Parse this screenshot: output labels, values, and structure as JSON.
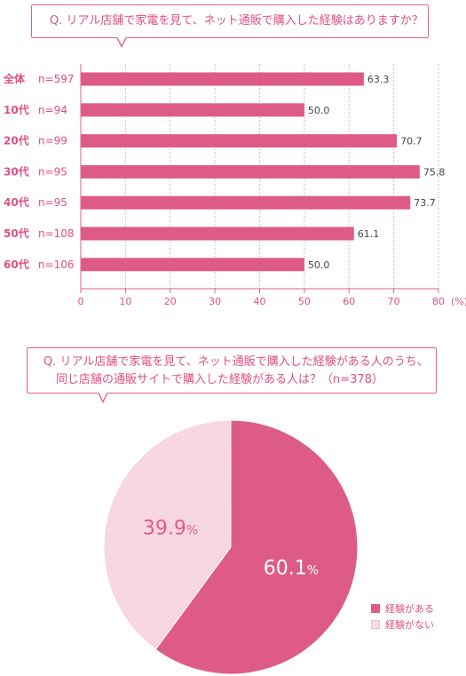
{
  "q1": {
    "text": "Q. リアル店舗で家電を見て、ネット通販で購入した経験はありますか？"
  },
  "q2": {
    "line1": "Q. リアル店舗で家電を見て、ネット通販で購入した経験がある人のうち、",
    "line2": "同じ店舗の通販サイトで購入した経験がある人は？（n=378）"
  },
  "chart_data": [
    {
      "type": "bar",
      "orientation": "horizontal",
      "categories": [
        "全体",
        "10代",
        "20代",
        "30代",
        "40代",
        "50代",
        "60代"
      ],
      "sample_sizes": [
        "n=597",
        "n=94",
        "n=99",
        "n=95",
        "n=95",
        "n=108",
        "n=106"
      ],
      "values": [
        63.3,
        50.0,
        70.7,
        75.8,
        73.7,
        61.1,
        50.0
      ],
      "value_labels": [
        "63.3",
        "50.0",
        "70.7",
        "75.8",
        "73.7",
        "61.1",
        "50.0"
      ],
      "xlim": [
        0,
        80
      ],
      "xticks": [
        "0",
        "10",
        "20",
        "30",
        "40",
        "50",
        "60",
        "70",
        "80"
      ],
      "x_unit": "(%)",
      "grid": "vertical dotted",
      "color": "#de5b87"
    },
    {
      "type": "pie",
      "labels": [
        "経験がある",
        "経験がない"
      ],
      "values": [
        60.1,
        39.9
      ],
      "value_labels": [
        "60.1%",
        "39.9%"
      ],
      "colors": [
        "#de5b87",
        "#f6cfdb"
      ],
      "legend": "bottom-right"
    }
  ]
}
